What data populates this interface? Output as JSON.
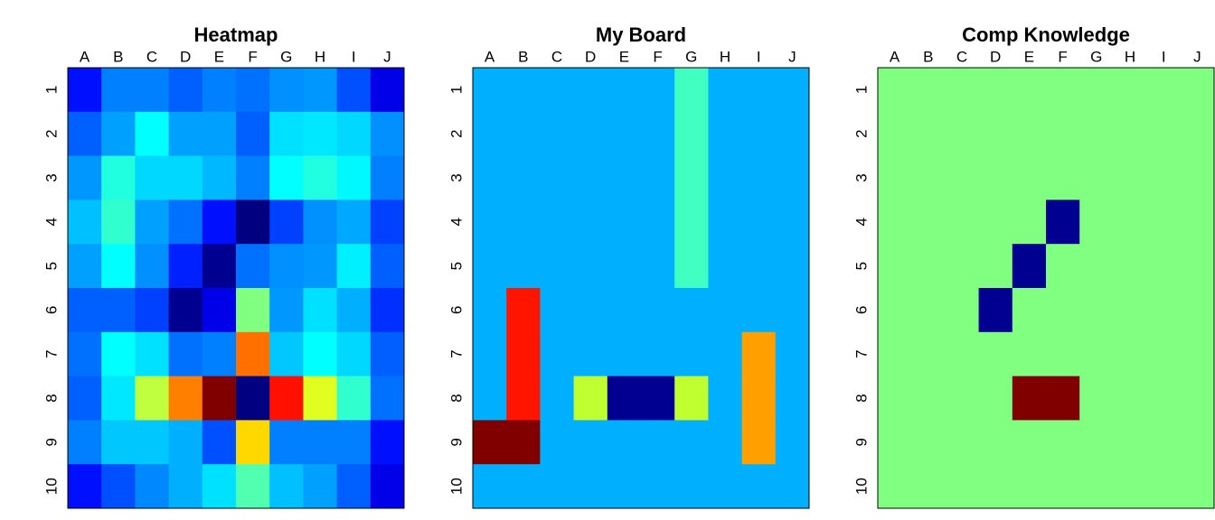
{
  "chart_data": [
    {
      "type": "heatmap",
      "title": "Heatmap",
      "x": [
        "A",
        "B",
        "C",
        "D",
        "E",
        "F",
        "G",
        "H",
        "I",
        "J"
      ],
      "y": [
        "1",
        "2",
        "3",
        "4",
        "5",
        "6",
        "7",
        "8",
        "9",
        "10"
      ],
      "colors": [
        [
          "#0010ff",
          "#0080ff",
          "#0080ff",
          "#0060ff",
          "#0080ff",
          "#0070ff",
          "#0090ff",
          "#0098ff",
          "#0050ff",
          "#0000e8"
        ],
        [
          "#0060ff",
          "#00a0ff",
          "#00ffff",
          "#00a0ff",
          "#00a0ff",
          "#0060ff",
          "#00e0ff",
          "#00e8ff",
          "#00d8ff",
          "#0090ff"
        ],
        [
          "#0098ff",
          "#20ffe0",
          "#00d8ff",
          "#00d8ff",
          "#00b8ff",
          "#0080ff",
          "#00ffff",
          "#20ffe0",
          "#00f8ff",
          "#0080ff"
        ],
        [
          "#00c0ff",
          "#30ffd0",
          "#00a0ff",
          "#0070ff",
          "#0010ff",
          "#000080",
          "#0040ff",
          "#0090ff",
          "#00a8ff",
          "#0040ff"
        ],
        [
          "#00a0ff",
          "#00ffff",
          "#0090ff",
          "#0020ff",
          "#000090",
          "#0070ff",
          "#0090ff",
          "#0098ff",
          "#00f0ff",
          "#0060ff"
        ],
        [
          "#0060ff",
          "#0060ff",
          "#0040ff",
          "#000090",
          "#0000e8",
          "#80ff80",
          "#0098ff",
          "#00e0ff",
          "#00b0ff",
          "#0030ff"
        ],
        [
          "#0070ff",
          "#00ffff",
          "#00e0ff",
          "#0070ff",
          "#0080ff",
          "#ff7000",
          "#00c8ff",
          "#00ffff",
          "#00d8ff",
          "#0060ff"
        ],
        [
          "#0060ff",
          "#00e8ff",
          "#c0ff40",
          "#ff8000",
          "#800000",
          "#000080",
          "#ff1000",
          "#e0ff20",
          "#30ffd0",
          "#0070ff"
        ],
        [
          "#0080ff",
          "#00c8ff",
          "#00c8ff",
          "#00b0ff",
          "#0050ff",
          "#ffd800",
          "#0080ff",
          "#0080ff",
          "#0080ff",
          "#0010ff"
        ],
        [
          "#0010ff",
          "#0050ff",
          "#0088ff",
          "#00b0ff",
          "#00e0ff",
          "#50ffb0",
          "#00c0ff",
          "#00a0ff",
          "#0060ff",
          "#0000e8"
        ]
      ]
    },
    {
      "type": "heatmap",
      "title": "My Board",
      "x": [
        "A",
        "B",
        "C",
        "D",
        "E",
        "F",
        "G",
        "H",
        "I",
        "J"
      ],
      "y": [
        "1",
        "2",
        "3",
        "4",
        "5",
        "6",
        "7",
        "8",
        "9",
        "10"
      ],
      "colors": [
        [
          "#00b0ff",
          "#00b0ff",
          "#00b0ff",
          "#00b0ff",
          "#00b0ff",
          "#00b0ff",
          "#40ffc0",
          "#00b0ff",
          "#00b0ff",
          "#00b0ff"
        ],
        [
          "#00b0ff",
          "#00b0ff",
          "#00b0ff",
          "#00b0ff",
          "#00b0ff",
          "#00b0ff",
          "#40ffc0",
          "#00b0ff",
          "#00b0ff",
          "#00b0ff"
        ],
        [
          "#00b0ff",
          "#00b0ff",
          "#00b0ff",
          "#00b0ff",
          "#00b0ff",
          "#00b0ff",
          "#40ffc0",
          "#00b0ff",
          "#00b0ff",
          "#00b0ff"
        ],
        [
          "#00b0ff",
          "#00b0ff",
          "#00b0ff",
          "#00b0ff",
          "#00b0ff",
          "#00b0ff",
          "#40ffc0",
          "#00b0ff",
          "#00b0ff",
          "#00b0ff"
        ],
        [
          "#00b0ff",
          "#00b0ff",
          "#00b0ff",
          "#00b0ff",
          "#00b0ff",
          "#00b0ff",
          "#40ffc0",
          "#00b0ff",
          "#00b0ff",
          "#00b0ff"
        ],
        [
          "#00b0ff",
          "#ff1400",
          "#00b0ff",
          "#00b0ff",
          "#00b0ff",
          "#00b0ff",
          "#00b0ff",
          "#00b0ff",
          "#00b0ff",
          "#00b0ff"
        ],
        [
          "#00b0ff",
          "#ff1400",
          "#00b0ff",
          "#00b0ff",
          "#00b0ff",
          "#00b0ff",
          "#00b0ff",
          "#00b0ff",
          "#ffa000",
          "#00b0ff"
        ],
        [
          "#00b0ff",
          "#ff1400",
          "#00b0ff",
          "#c0ff30",
          "#000090",
          "#000090",
          "#c0ff30",
          "#00b0ff",
          "#ffa000",
          "#00b0ff"
        ],
        [
          "#800000",
          "#800000",
          "#00b0ff",
          "#00b0ff",
          "#00b0ff",
          "#00b0ff",
          "#00b0ff",
          "#00b0ff",
          "#ffa000",
          "#00b0ff"
        ],
        [
          "#00b0ff",
          "#00b0ff",
          "#00b0ff",
          "#00b0ff",
          "#00b0ff",
          "#00b0ff",
          "#00b0ff",
          "#00b0ff",
          "#00b0ff",
          "#00b0ff"
        ]
      ]
    },
    {
      "type": "heatmap",
      "title": "Comp Knowledge",
      "x": [
        "A",
        "B",
        "C",
        "D",
        "E",
        "F",
        "G",
        "H",
        "I",
        "J"
      ],
      "y": [
        "1",
        "2",
        "3",
        "4",
        "5",
        "6",
        "7",
        "8",
        "9",
        "10"
      ],
      "colors": [
        [
          "#80ff80",
          "#80ff80",
          "#80ff80",
          "#80ff80",
          "#80ff80",
          "#80ff80",
          "#80ff80",
          "#80ff80",
          "#80ff80",
          "#80ff80"
        ],
        [
          "#80ff80",
          "#80ff80",
          "#80ff80",
          "#80ff80",
          "#80ff80",
          "#80ff80",
          "#80ff80",
          "#80ff80",
          "#80ff80",
          "#80ff80"
        ],
        [
          "#80ff80",
          "#80ff80",
          "#80ff80",
          "#80ff80",
          "#80ff80",
          "#80ff80",
          "#80ff80",
          "#80ff80",
          "#80ff80",
          "#80ff80"
        ],
        [
          "#80ff80",
          "#80ff80",
          "#80ff80",
          "#80ff80",
          "#80ff80",
          "#000090",
          "#80ff80",
          "#80ff80",
          "#80ff80",
          "#80ff80"
        ],
        [
          "#80ff80",
          "#80ff80",
          "#80ff80",
          "#80ff80",
          "#000090",
          "#80ff80",
          "#80ff80",
          "#80ff80",
          "#80ff80",
          "#80ff80"
        ],
        [
          "#80ff80",
          "#80ff80",
          "#80ff80",
          "#000090",
          "#80ff80",
          "#80ff80",
          "#80ff80",
          "#80ff80",
          "#80ff80",
          "#80ff80"
        ],
        [
          "#80ff80",
          "#80ff80",
          "#80ff80",
          "#80ff80",
          "#80ff80",
          "#80ff80",
          "#80ff80",
          "#80ff80",
          "#80ff80",
          "#80ff80"
        ],
        [
          "#80ff80",
          "#80ff80",
          "#80ff80",
          "#80ff80",
          "#800000",
          "#800000",
          "#80ff80",
          "#80ff80",
          "#80ff80",
          "#80ff80"
        ],
        [
          "#80ff80",
          "#80ff80",
          "#80ff80",
          "#80ff80",
          "#80ff80",
          "#80ff80",
          "#80ff80",
          "#80ff80",
          "#80ff80",
          "#80ff80"
        ],
        [
          "#80ff80",
          "#80ff80",
          "#80ff80",
          "#80ff80",
          "#80ff80",
          "#80ff80",
          "#80ff80",
          "#80ff80",
          "#80ff80",
          "#80ff80"
        ]
      ]
    }
  ]
}
